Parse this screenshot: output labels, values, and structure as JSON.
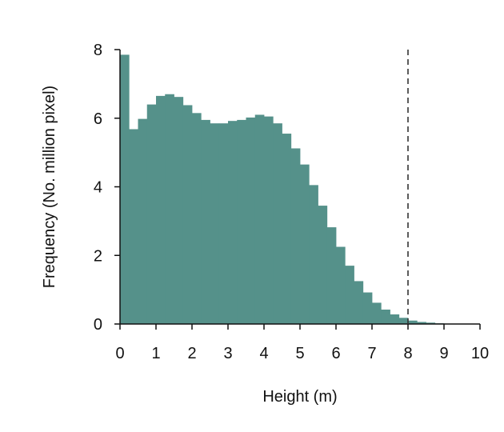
{
  "chart_data": {
    "type": "bar",
    "xlabel": "Height (m)",
    "ylabel": "Frequency (No. million pixel)",
    "xlim": [
      0,
      10
    ],
    "ylim": [
      0,
      8
    ],
    "xticks": [
      0,
      1,
      2,
      3,
      4,
      5,
      6,
      7,
      8,
      9,
      10
    ],
    "yticks": [
      0,
      2,
      4,
      6,
      8
    ],
    "bin_width": 0.25,
    "bin_starts": [
      0,
      0.25,
      0.5,
      0.75,
      1.0,
      1.25,
      1.5,
      1.75,
      2.0,
      2.25,
      2.5,
      2.75,
      3.0,
      3.25,
      3.5,
      3.75,
      4.0,
      4.25,
      4.5,
      4.75,
      5.0,
      5.25,
      5.5,
      5.75,
      6.0,
      6.25,
      6.5,
      6.75,
      7.0,
      7.25,
      7.5,
      7.75,
      8.0,
      8.25,
      8.5,
      8.75,
      9.0,
      9.25,
      9.5,
      9.75
    ],
    "values": [
      7.85,
      5.68,
      5.98,
      6.4,
      6.65,
      6.7,
      6.62,
      6.38,
      6.15,
      5.95,
      5.85,
      5.85,
      5.92,
      5.95,
      6.02,
      6.1,
      6.05,
      5.85,
      5.55,
      5.12,
      4.65,
      4.05,
      3.45,
      2.82,
      2.25,
      1.7,
      1.25,
      0.92,
      0.62,
      0.42,
      0.28,
      0.18,
      0.1,
      0.06,
      0.04,
      0.02,
      0.01,
      0.01,
      0.005,
      0.005
    ],
    "bar_color": "#55918A",
    "reference_line": {
      "x": 8,
      "style": "dashed",
      "color": "#333333"
    },
    "grid": false,
    "legend": "none"
  }
}
